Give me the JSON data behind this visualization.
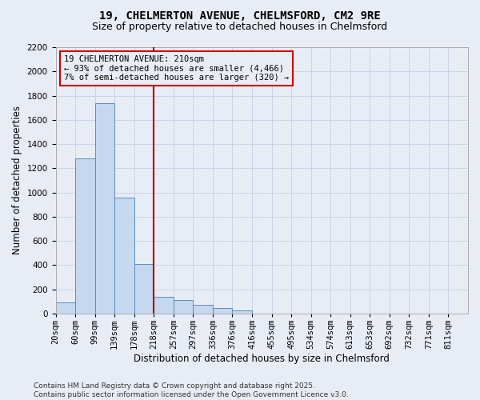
{
  "title_line1": "19, CHELMERTON AVENUE, CHELMSFORD, CM2 9RE",
  "title_line2": "Size of property relative to detached houses in Chelmsford",
  "xlabel": "Distribution of detached houses by size in Chelmsford",
  "ylabel": "Number of detached properties",
  "bins": [
    "20sqm",
    "60sqm",
    "99sqm",
    "139sqm",
    "178sqm",
    "218sqm",
    "257sqm",
    "297sqm",
    "336sqm",
    "376sqm",
    "416sqm",
    "455sqm",
    "495sqm",
    "534sqm",
    "574sqm",
    "613sqm",
    "653sqm",
    "692sqm",
    "732sqm",
    "771sqm",
    "811sqm"
  ],
  "bin_left_edges": [
    0,
    1,
    2,
    3,
    4,
    5,
    6,
    7,
    8,
    9,
    10,
    11,
    12,
    13,
    14,
    15,
    16,
    17,
    18,
    19,
    20
  ],
  "values": [
    90,
    1280,
    1740,
    960,
    410,
    140,
    110,
    70,
    45,
    25,
    0,
    0,
    0,
    0,
    0,
    0,
    0,
    0,
    0,
    0,
    0
  ],
  "bar_color": "#c5d8ef",
  "bar_edge_color": "#5b8db8",
  "grid_color": "#c8d4e8",
  "background_color": "#e8edf5",
  "property_line_bin": 5,
  "property_line_color": "#aa0000",
  "annotation_text": "19 CHELMERTON AVENUE: 210sqm\n← 93% of detached houses are smaller (4,466)\n7% of semi-detached houses are larger (320) →",
  "annotation_box_color": "#cc0000",
  "ylim": [
    0,
    2200
  ],
  "yticks": [
    0,
    200,
    400,
    600,
    800,
    1000,
    1200,
    1400,
    1600,
    1800,
    2000,
    2200
  ],
  "footer_line1": "Contains HM Land Registry data © Crown copyright and database right 2025.",
  "footer_line2": "Contains public sector information licensed under the Open Government Licence v3.0.",
  "title_fontsize": 10,
  "subtitle_fontsize": 9,
  "axis_label_fontsize": 8.5,
  "tick_fontsize": 7.5,
  "annotation_fontsize": 7.5,
  "footer_fontsize": 6.5
}
